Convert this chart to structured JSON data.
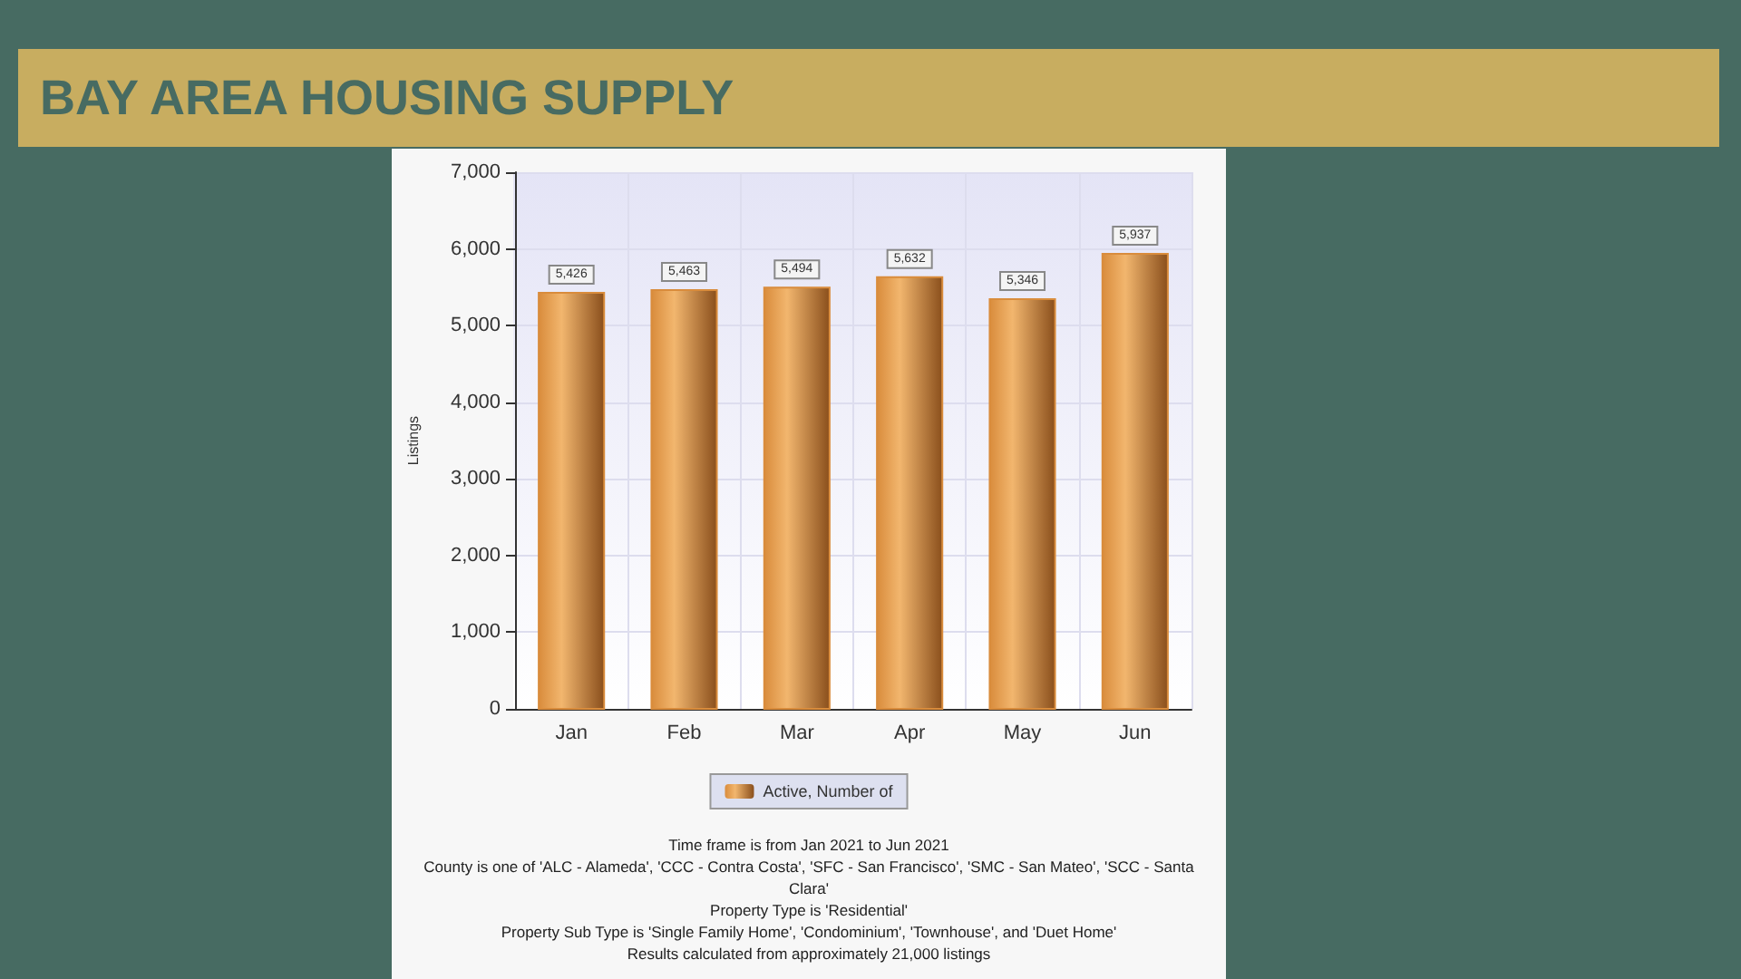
{
  "chart_data": {
    "type": "bar",
    "title": "BAY AREA HOUSING SUPPLY",
    "ylabel": "Listings",
    "categories": [
      "Jan",
      "Feb",
      "Mar",
      "Apr",
      "May",
      "Jun"
    ],
    "series": [
      {
        "name": "Active, Number of",
        "color": "#d98c3c",
        "values": [
          5426,
          5463,
          5494,
          5632,
          5346,
          5937
        ],
        "value_labels": [
          "5,426",
          "5,463",
          "5,494",
          "5,632",
          "5,346",
          "5,937"
        ]
      }
    ],
    "ylim": [
      0,
      7000
    ],
    "yticks": [
      0,
      {
        "value": 1000,
        "label": "1,000"
      },
      {
        "value": 2000,
        "label": "2,000"
      },
      {
        "value": 3000,
        "label": "3,000"
      },
      {
        "value": 4000,
        "label": "4,000"
      },
      {
        "value": 5000,
        "label": "5,000"
      },
      {
        "value": 6000,
        "label": "6,000"
      },
      {
        "value": 7000,
        "label": "7,000"
      }
    ],
    "grid": true,
    "legend": "bottom",
    "annotations": [
      "Time frame is from Jan 2021 to Jun 2021",
      "County is one of 'ALC - Alameda', 'CCC - Contra Costa', 'SFC - San Francisco', 'SMC - San Mateo', 'SCC - Santa Clara'",
      "Property Type is 'Residential'",
      "Property Sub Type is 'Single Family Home', 'Condominium', 'Townhouse', and 'Duet Home'",
      "Results calculated from approximately 21,000 listings"
    ]
  }
}
